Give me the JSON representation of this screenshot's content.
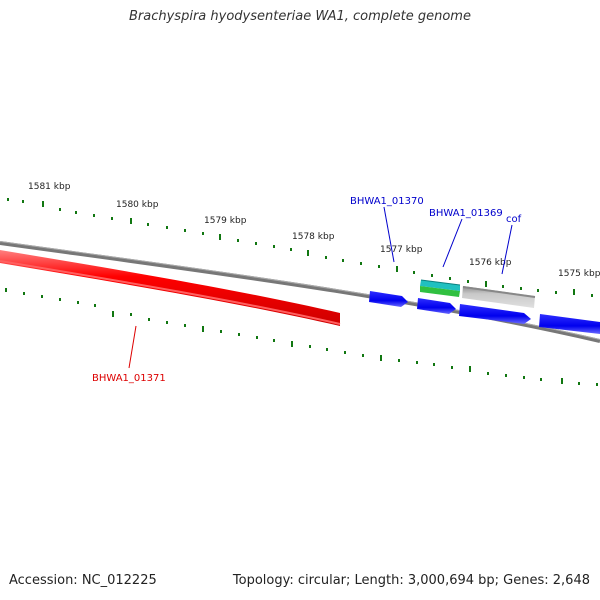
{
  "title": "Brachyspira hyodysenteriae WA1, complete genome",
  "ruler": {
    "ticks": [
      "1581 kbp",
      "1580 kbp",
      "1579 kbp",
      "1578 kbp",
      "1577 kbp",
      "1576 kbp",
      "1575 kbp"
    ]
  },
  "genes": {
    "g1371": "BHWA1_01371",
    "g1370": "BHWA1_01370",
    "g1369": "BHWA1_01369",
    "cof": "cof"
  },
  "colors": {
    "forward": "#0000ee",
    "reverse": "#ee0000",
    "ticks": "#117711",
    "backbone": "#777777"
  },
  "footer": {
    "accession": "Accession: NC_012225",
    "summary": "Topology: circular; Length: 3,000,694 bp; Genes: 2,648"
  }
}
